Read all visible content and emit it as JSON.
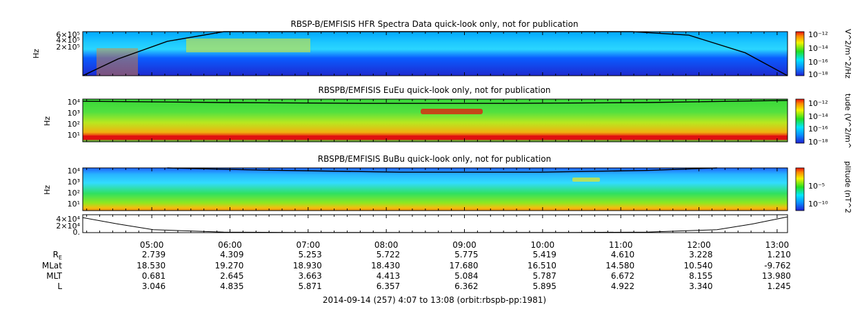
{
  "chart_data": [
    {
      "type": "heatmap",
      "title": "RBSP-B/EMFISIS  HFR Spectra Data quick-look only, not for publication",
      "ylabel": "Hz",
      "ytick_labels": [
        "6×10⁵",
        "4×10⁵",
        "2×10⁵"
      ],
      "colorbar_label": "V^2/m^2/Hz",
      "colorbar_ticks": [
        "10⁻¹²",
        "10⁻¹⁴",
        "10⁻¹⁶",
        "10⁻¹⁸"
      ],
      "curve": [
        [
          0.0,
          1.0
        ],
        [
          0.05,
          0.62
        ],
        [
          0.12,
          0.22
        ],
        [
          0.2,
          0.0
        ],
        [
          0.78,
          0.0
        ],
        [
          0.86,
          0.08
        ],
        [
          0.94,
          0.48
        ],
        [
          1.0,
          1.0
        ]
      ]
    },
    {
      "type": "heatmap",
      "title": "RBSPB/EMFISIS  EuEu quick-look only, not for publication",
      "ylabel": "Hz",
      "ytick_labels": [
        "10⁴",
        "10³",
        "10²",
        "10¹"
      ],
      "colorbar_label": "tude (V^2/m^",
      "colorbar_ticks": [
        "10⁻¹²",
        "10⁻¹⁴",
        "10⁻¹⁶",
        "10⁻¹⁸"
      ],
      "curve": [
        [
          0.0,
          0.05
        ],
        [
          0.2,
          0.08
        ],
        [
          0.4,
          0.1
        ],
        [
          0.6,
          0.1
        ],
        [
          0.8,
          0.08
        ],
        [
          1.0,
          0.03
        ]
      ]
    },
    {
      "type": "heatmap",
      "title": "RBSPB/EMFISIS  BuBu quick-look only, not for publication",
      "ylabel": "Hz",
      "ytick_labels": [
        "10⁴",
        "10³",
        "10²",
        "10¹"
      ],
      "colorbar_label": "plitude (nT^2",
      "colorbar_ticks": [
        "10⁻⁵",
        "10⁻¹⁰"
      ],
      "curve": [
        [
          0.12,
          0.0
        ],
        [
          0.25,
          0.05
        ],
        [
          0.45,
          0.1
        ],
        [
          0.65,
          0.1
        ],
        [
          0.8,
          0.06
        ],
        [
          0.9,
          0.0
        ]
      ]
    },
    {
      "type": "line",
      "ytick_labels": [
        "4×10⁴",
        "2×10⁴",
        "0."
      ],
      "ylim": [
        0,
        50000
      ],
      "x": [
        0.0,
        0.05,
        0.1,
        0.2,
        0.3,
        0.5,
        0.7,
        0.8,
        0.9,
        0.95,
        1.0
      ],
      "values": [
        42000,
        24000,
        8000,
        1500,
        500,
        200,
        500,
        1500,
        8000,
        24000,
        44000
      ]
    }
  ],
  "xaxis": {
    "ticks": [
      "05:00",
      "06:00",
      "07:00",
      "08:00",
      "09:00",
      "10:00",
      "11:00",
      "12:00",
      "13:00"
    ],
    "tick_hours": [
      5,
      6,
      7,
      8,
      9,
      10,
      11,
      12,
      13
    ],
    "start_hour": 4.1167,
    "end_hour": 13.1333
  },
  "ephemeris": [
    {
      "label": "RE",
      "values": [
        "2.739",
        "4.309",
        "5.253",
        "5.722",
        "5.775",
        "5.419",
        "4.610",
        "3.228",
        "1.210"
      ]
    },
    {
      "label": "MLat",
      "values": [
        "18.530",
        "19.270",
        "18.930",
        "18.430",
        "17.680",
        "16.510",
        "14.580",
        "10.540",
        "-9.762"
      ]
    },
    {
      "label": "MLT",
      "values": [
        "0.681",
        "2.645",
        "3.663",
        "4.413",
        "5.084",
        "5.787",
        "6.672",
        "8.155",
        "13.980"
      ]
    },
    {
      "label": "L",
      "values": [
        "3.046",
        "4.835",
        "5.871",
        "6.357",
        "6.362",
        "5.895",
        "4.922",
        "3.340",
        "1.245"
      ]
    }
  ],
  "footer": "2014-09-14 (257) 4:07 to 13:08 (orbit:rbspb-pp:1981)"
}
